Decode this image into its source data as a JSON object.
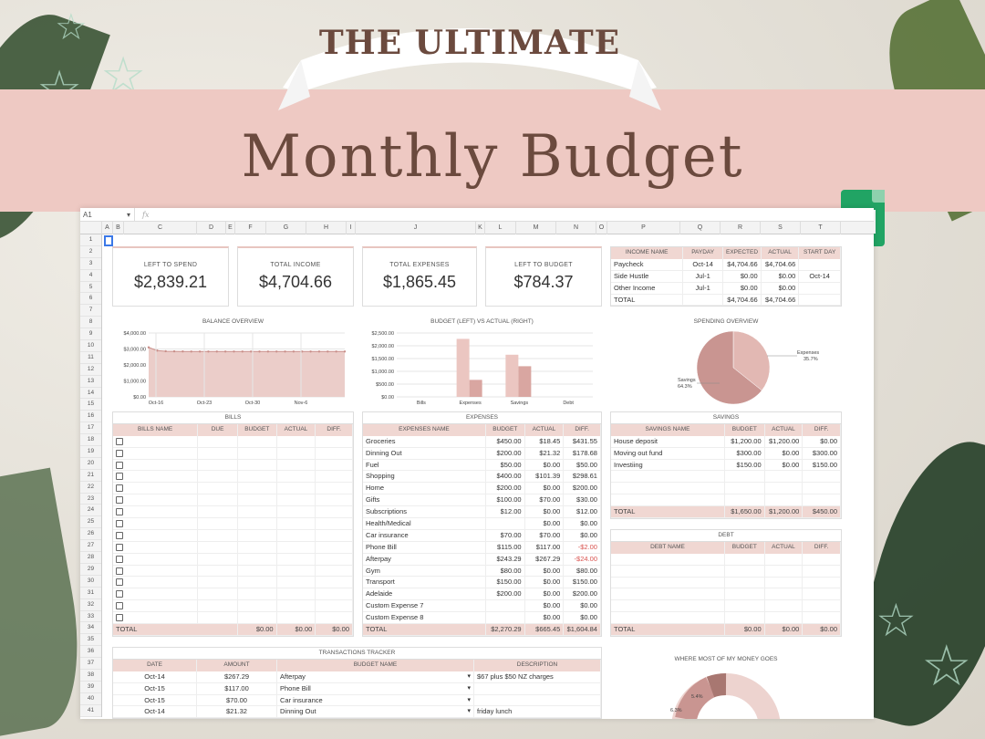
{
  "banner": {
    "ribbon": "THE ULTIMATE",
    "title": "Monthly Budget"
  },
  "formula_bar": {
    "cell": "A1",
    "fx": "fx"
  },
  "columns": [
    "A",
    "B",
    "C",
    "D",
    "E",
    "F",
    "G",
    "H",
    "I",
    "J",
    "K",
    "L",
    "M",
    "N",
    "O",
    "P",
    "Q",
    "R",
    "S",
    "T"
  ],
  "rows": [
    "1",
    "2",
    "3",
    "4",
    "5",
    "6",
    "7",
    "8",
    "9",
    "10",
    "11",
    "12",
    "13",
    "14",
    "15",
    "16",
    "17",
    "18",
    "19",
    "20",
    "21",
    "22",
    "23",
    "24",
    "25",
    "26",
    "27",
    "28",
    "29",
    "30",
    "31",
    "32",
    "33",
    "34",
    "35",
    "36",
    "37",
    "38",
    "39",
    "40",
    "41"
  ],
  "summary": [
    {
      "label": "LEFT TO SPEND",
      "value": "$2,839.21"
    },
    {
      "label": "TOTAL INCOME",
      "value": "$4,704.66"
    },
    {
      "label": "TOTAL EXPENSES",
      "value": "$1,865.45"
    },
    {
      "label": "LEFT TO BUDGET",
      "value": "$784.37"
    }
  ],
  "income": {
    "headers": [
      "INCOME NAME",
      "PAYDAY",
      "EXPECTED",
      "ACTUAL",
      "START DAY"
    ],
    "rows": [
      [
        "Paycheck",
        "Oct-14",
        "$4,704.66",
        "$4,704.66"
      ],
      [
        "Side Hustle",
        "Jul-1",
        "$0.00",
        "$0.00"
      ],
      [
        "Other Income",
        "Jul-1",
        "$0.00",
        "$0.00"
      ],
      [
        "TOTAL",
        "",
        "$4,704.66",
        "$4,704.66"
      ]
    ],
    "start_day": "Oct-14"
  },
  "charts": {
    "balance_title": "BALANCE OVERVIEW",
    "budget_title": "BUDGET (LEFT) VS ACTUAL (RIGHT)",
    "spending_title": "SPENDING OVERVIEW",
    "money_title": "WHERE MOST OF MY MONEY GOES"
  },
  "chart_data": [
    {
      "type": "area",
      "title": "BALANCE OVERVIEW",
      "x_ticks": [
        "Oct-16",
        "Oct-23",
        "Oct-30",
        "Nov-6"
      ],
      "y_ticks": [
        "$4,000.00",
        "$3,000.00",
        "$2,000.00",
        "$1,000.00",
        "$0.00"
      ],
      "ylim": [
        0,
        4000
      ],
      "series": [
        {
          "values": [
            3100,
            2900,
            2860,
            2850,
            2845,
            2842,
            2840,
            2840,
            2840,
            2840,
            2840,
            2840,
            2840,
            2840,
            2840,
            2840,
            2840,
            2840,
            2840,
            2840,
            2840,
            2840,
            2840,
            2840
          ]
        }
      ]
    },
    {
      "type": "bar",
      "title": "BUDGET (LEFT) VS ACTUAL (RIGHT)",
      "categories": [
        "Bills",
        "Expenses",
        "Savings",
        "Debt"
      ],
      "y_ticks": [
        "$2,500.00",
        "$2,000.00",
        "$1,500.00",
        "$1,000.00",
        "$500.00",
        "$0.00"
      ],
      "ylim": [
        0,
        2500
      ],
      "series": [
        {
          "values": [
            0,
            2270.29,
            1650,
            0
          ]
        },
        {
          "values": [
            0,
            665.45,
            1200,
            0
          ]
        }
      ]
    },
    {
      "type": "pie",
      "title": "SPENDING OVERVIEW",
      "labels": [
        "Expenses",
        "Savings"
      ],
      "pct_labels": [
        "35.7%",
        "64.3%"
      ],
      "values": [
        35.7,
        64.3
      ]
    },
    {
      "type": "pie",
      "title": "WHERE MOST OF MY MONEY GOES",
      "pct_labels": [
        "5.4%",
        "6.3%"
      ]
    }
  ],
  "bills": {
    "title": "BILLS",
    "headers": [
      "BILLS NAME",
      "DUE",
      "BUDGET",
      "ACTUAL",
      "DIFF."
    ],
    "total": [
      "TOTAL",
      "$0.00",
      "$0.00",
      "$0.00"
    ]
  },
  "expenses": {
    "title": "EXPENSES",
    "headers": [
      "EXPENSES NAME",
      "BUDGET",
      "ACTUAL",
      "DIFF."
    ],
    "rows": [
      [
        "Groceries",
        "$450.00",
        "$18.45",
        "$431.55"
      ],
      [
        "Dinning Out",
        "$200.00",
        "$21.32",
        "$178.68"
      ],
      [
        "Fuel",
        "$50.00",
        "$0.00",
        "$50.00"
      ],
      [
        "Shopping",
        "$400.00",
        "$101.39",
        "$298.61"
      ],
      [
        "Home",
        "$200.00",
        "$0.00",
        "$200.00"
      ],
      [
        "Gifts",
        "$100.00",
        "$70.00",
        "$30.00"
      ],
      [
        "Subscriptions",
        "$12.00",
        "$0.00",
        "$12.00"
      ],
      [
        "Health/Medical",
        "",
        "$0.00",
        "$0.00"
      ],
      [
        "Car insurance",
        "$70.00",
        "$70.00",
        "$0.00"
      ],
      [
        "Phone Bill",
        "$115.00",
        "$117.00",
        "-$2.00"
      ],
      [
        "Afterpay",
        "$243.29",
        "$267.29",
        "-$24.00"
      ],
      [
        "Gym",
        "$80.00",
        "$0.00",
        "$80.00"
      ],
      [
        "Transport",
        "$150.00",
        "$0.00",
        "$150.00"
      ],
      [
        "Adelaide",
        "$200.00",
        "$0.00",
        "$200.00"
      ],
      [
        "Custom Expense 7",
        "",
        "$0.00",
        "$0.00"
      ],
      [
        "Custom Expense 8",
        "",
        "$0.00",
        "$0.00"
      ]
    ],
    "total": [
      "TOTAL",
      "$2,270.29",
      "$665.45",
      "$1,604.84"
    ]
  },
  "savings": {
    "title": "SAVINGS",
    "headers": [
      "SAVINGS NAME",
      "BUDGET",
      "ACTUAL",
      "DIFF."
    ],
    "rows": [
      [
        "House deposit",
        "$1,200.00",
        "$1,200.00",
        "$0.00"
      ],
      [
        "Moving out fund",
        "$300.00",
        "$0.00",
        "$300.00"
      ],
      [
        "Investiing",
        "$150.00",
        "$0.00",
        "$150.00"
      ]
    ],
    "total": [
      "TOTAL",
      "$1,650.00",
      "$1,200.00",
      "$450.00"
    ]
  },
  "debt": {
    "title": "DEBT",
    "headers": [
      "DEBT NAME",
      "BUDGET",
      "ACTUAL",
      "DIFF."
    ],
    "total": [
      "TOTAL",
      "$0.00",
      "$0.00",
      "$0.00"
    ]
  },
  "transactions": {
    "title": "TRANSACTIONS TRACKER",
    "headers": [
      "DATE",
      "AMOUNT",
      "BUDGET NAME",
      "DESCRIPTION"
    ],
    "rows": [
      [
        "Oct-14",
        "$267.29",
        "Afterpay",
        "$67 plus $50 NZ charges"
      ],
      [
        "Oct-15",
        "$117.00",
        "Phone Bill",
        ""
      ],
      [
        "Oct-15",
        "$70.00",
        "Car insurance",
        ""
      ],
      [
        "Oct-14",
        "$21.32",
        "Dinning Out",
        "friday lunch"
      ]
    ]
  },
  "colors": {
    "accent": "#f0d7d2",
    "band": "#eec9c3",
    "title": "#6b4a3e",
    "chart_fill": "#d9a6a1"
  }
}
